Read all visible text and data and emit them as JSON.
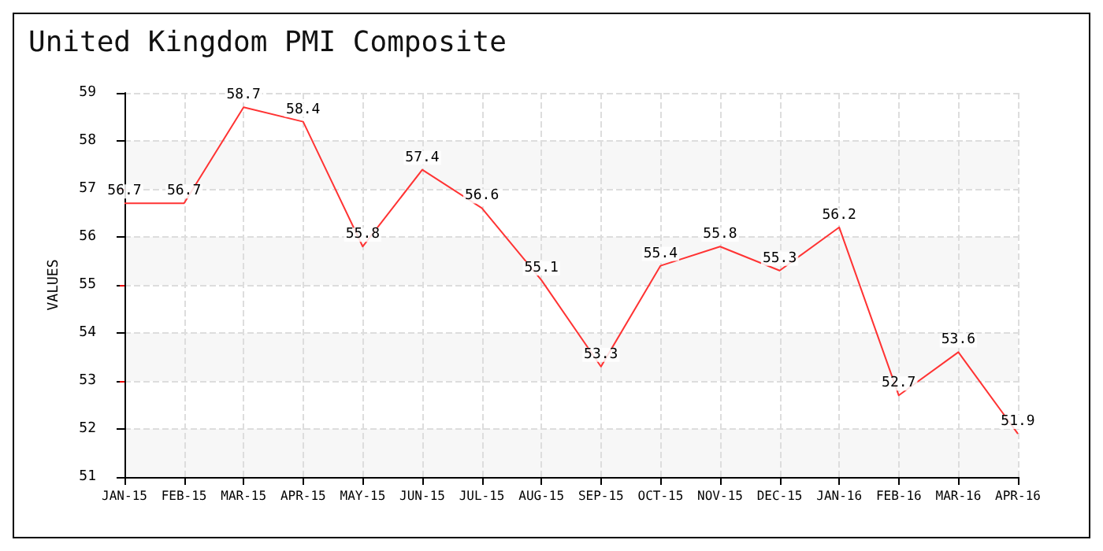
{
  "chart_data": {
    "type": "line",
    "title": "United Kingdom PMI Composite",
    "ylabel": "VALUES",
    "categories": [
      "JAN-15",
      "FEB-15",
      "MAR-15",
      "APR-15",
      "MAY-15",
      "JUN-15",
      "JUL-15",
      "AUG-15",
      "SEP-15",
      "OCT-15",
      "NOV-15",
      "DEC-15",
      "JAN-16",
      "FEB-16",
      "MAR-16",
      "APR-16"
    ],
    "series": [
      {
        "color": "#ff3333",
        "values": [
          56.7,
          56.7,
          58.7,
          58.4,
          55.8,
          57.4,
          56.6,
          55.1,
          53.3,
          55.4,
          55.8,
          55.3,
          56.2,
          52.7,
          53.6,
          51.9
        ]
      }
    ],
    "ylim": [
      51,
      59
    ],
    "yticks": [
      51,
      52,
      53,
      54,
      55,
      56,
      57,
      58,
      59
    ],
    "grid": true,
    "data_labels": true,
    "marker": "none",
    "line_style": "solid"
  }
}
